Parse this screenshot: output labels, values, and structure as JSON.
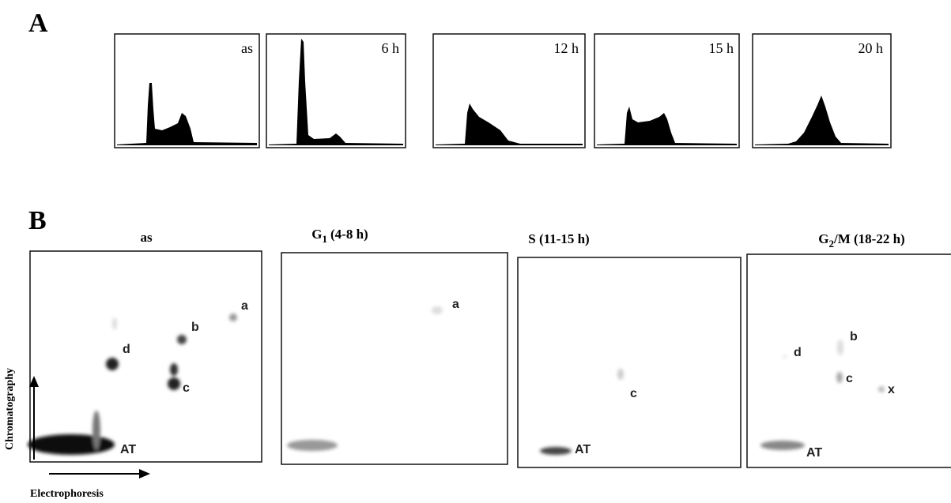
{
  "panel_a": {
    "label": "A",
    "histograms": [
      {
        "label": "as"
      },
      {
        "label": "6 h"
      },
      {
        "label": "12 h"
      },
      {
        "label": "15 h"
      },
      {
        "label": "20 h"
      }
    ]
  },
  "panel_b": {
    "label": "B",
    "y_axis_label": "Chromatography",
    "x_axis_label": "Electrophoresis",
    "plates": [
      {
        "title": {
          "main": "as"
        },
        "spots": [
          {
            "label": "a"
          },
          {
            "label": "b"
          },
          {
            "label": "d"
          },
          {
            "label": "c"
          },
          {
            "label": "AT"
          }
        ]
      },
      {
        "title": {
          "main": "G",
          "sub": "1",
          "rest": "(4-8 h)"
        },
        "spots": [
          {
            "label": "a"
          }
        ]
      },
      {
        "title": {
          "main": "S (11-15 h)"
        },
        "spots": [
          {
            "label": "c"
          },
          {
            "label": "AT"
          }
        ]
      },
      {
        "title": {
          "main": "G",
          "sub": "2",
          "rest": "/M (18-22 h)"
        },
        "spots": [
          {
            "label": "d"
          },
          {
            "label": "b"
          },
          {
            "label": "c"
          },
          {
            "label": "x"
          },
          {
            "label": "AT"
          }
        ]
      }
    ]
  }
}
